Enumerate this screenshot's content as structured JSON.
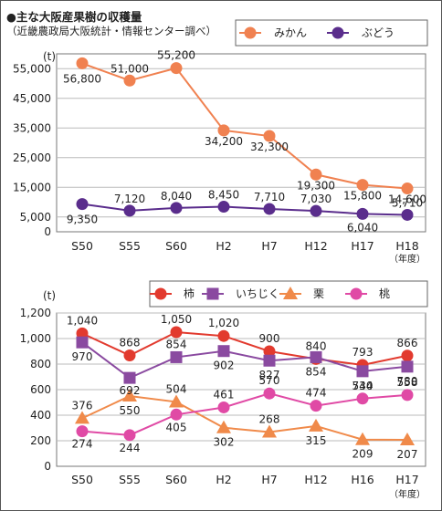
{
  "title": "●主な大阪産果樹の収穫量",
  "subtitle": "（近畿農政局大阪統計・情報センター調べ）",
  "chart_data": [
    {
      "type": "line",
      "categories": [
        "S50",
        "S55",
        "S60",
        "H2",
        "H7",
        "H12",
        "H17",
        "H18"
      ],
      "category_note": "（年度）",
      "ylabel": "(t)",
      "ylim": [
        0,
        60000
      ],
      "yticks": [
        0,
        5000,
        15000,
        25000,
        35000,
        45000,
        55000
      ],
      "ytick_labels": [
        "0",
        "5,000",
        "15,000",
        "25,000",
        "35,000",
        "45,000",
        "55,000"
      ],
      "grid": true,
      "legend_position": "top-right",
      "series": [
        {
          "name": "みかん",
          "color": "#f08150",
          "marker": "circle",
          "values": [
            56800,
            51000,
            55200,
            34200,
            32300,
            19300,
            15800,
            14600
          ],
          "labels": [
            "56,800",
            "51,000",
            "55,200",
            "34,200",
            "32,300",
            "19,300",
            "15,800",
            "14,600"
          ]
        },
        {
          "name": "ぶどう",
          "color": "#5a2d8c",
          "marker": "circle",
          "values": [
            9350,
            7120,
            8040,
            8450,
            7710,
            7030,
            6040,
            5710
          ],
          "labels": [
            "9,350",
            "7,120",
            "8,040",
            "8,450",
            "7,710",
            "7,030",
            "6,040",
            "5,710"
          ]
        }
      ]
    },
    {
      "type": "line",
      "categories": [
        "S50",
        "S55",
        "S60",
        "H2",
        "H7",
        "H12",
        "H16",
        "H17"
      ],
      "category_note": "（年度）",
      "ylabel": "(t)",
      "ylim": [
        0,
        1200
      ],
      "yticks": [
        0,
        200,
        400,
        600,
        800,
        1000,
        1200
      ],
      "ytick_labels": [
        "0",
        "200",
        "400",
        "600",
        "800",
        "1,000",
        "1,200"
      ],
      "grid": true,
      "legend_position": "top",
      "series": [
        {
          "name": "柿",
          "color": "#e23a2e",
          "marker": "circle",
          "values": [
            1040,
            868,
            1050,
            1020,
            900,
            840,
            793,
            866
          ],
          "labels": [
            "1,040",
            "868",
            "1,050",
            "1,020",
            "900",
            "840",
            "793",
            "866"
          ]
        },
        {
          "name": "いちじく",
          "color": "#8a4aa0",
          "marker": "square",
          "values": [
            970,
            692,
            854,
            902,
            827,
            854,
            744,
            780
          ],
          "labels": [
            "970",
            "692",
            "854",
            "902",
            "827",
            "854",
            "744",
            "780"
          ]
        },
        {
          "name": "栗",
          "color": "#f08a4a",
          "marker": "triangle",
          "values": [
            376,
            550,
            504,
            302,
            268,
            315,
            209,
            207
          ],
          "labels": [
            "376",
            "550",
            "504",
            "302",
            "268",
            "315",
            "209",
            "207"
          ]
        },
        {
          "name": "桃",
          "color": "#e04aa5",
          "marker": "circle",
          "values": [
            274,
            244,
            405,
            461,
            570,
            474,
            530,
            558
          ],
          "labels": [
            "274",
            "244",
            "405",
            "461",
            "570",
            "474",
            "530",
            "558"
          ]
        }
      ]
    }
  ]
}
